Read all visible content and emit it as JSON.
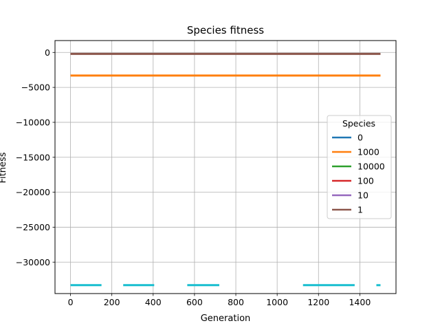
{
  "chart_data": {
    "type": "line",
    "title": "Species fitness",
    "xlabel": "Generation",
    "ylabel": "Fitness",
    "xlim": [
      -75,
      1575
    ],
    "ylim": [
      -34500,
      1700
    ],
    "xticks": [
      0,
      200,
      400,
      600,
      800,
      1000,
      1200,
      1400
    ],
    "yticks": [
      0,
      -5000,
      -10000,
      -15000,
      -20000,
      -25000,
      -30000
    ],
    "ytick_labels": [
      "0",
      "−5000",
      "−10000",
      "−15000",
      "−20000",
      "−25000",
      "−30000"
    ],
    "grid": true,
    "legend": {
      "title": "Species",
      "placement": "center-right"
    },
    "series": [
      {
        "name": "0",
        "color": "#1f77b4",
        "segments": []
      },
      {
        "name": "1000",
        "color": "#ff7f0e",
        "segments": [
          [
            0,
            1500,
            -3300
          ]
        ]
      },
      {
        "name": "10000",
        "color": "#2ca02c",
        "segments": []
      },
      {
        "name": "100",
        "color": "#d62728",
        "segments": []
      },
      {
        "name": "10",
        "color": "#9467bd",
        "segments": []
      },
      {
        "name": "1",
        "color": "#8c564b",
        "segments": [
          [
            0,
            1500,
            -200
          ]
        ]
      },
      {
        "color": "#17becf",
        "legend": false,
        "segments": [
          [
            0,
            150,
            -33300
          ],
          [
            255,
            405,
            -33300
          ],
          [
            565,
            720,
            -33300
          ],
          [
            1125,
            1375,
            -33300
          ],
          [
            1480,
            1500,
            -33300
          ]
        ]
      }
    ]
  }
}
